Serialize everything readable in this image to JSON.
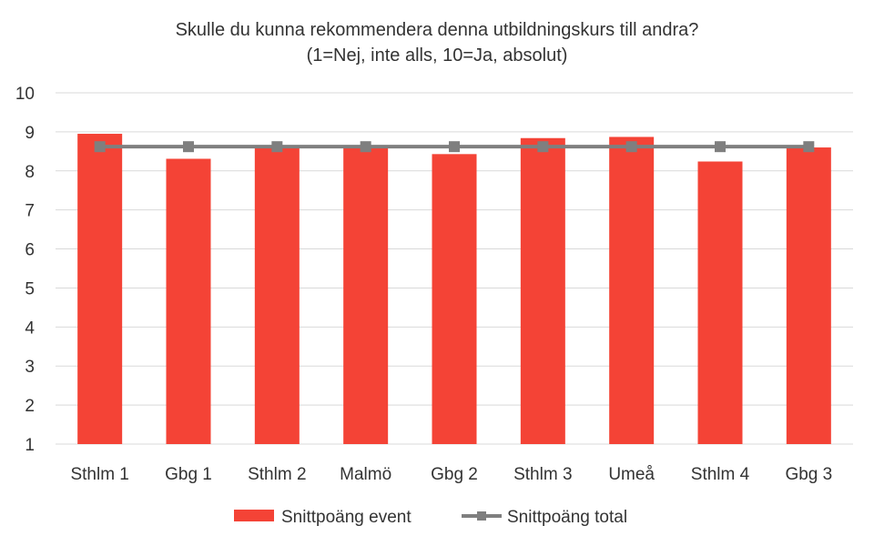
{
  "chart_data": {
    "type": "bar",
    "title": "Skulle du kunna rekommendera denna utbildningskurs till andra?",
    "subtitle": "(1=Nej, inte alls, 10=Ja,  absolut)",
    "categories": [
      "Sthlm 1",
      "Gbg 1",
      "Sthlm 2",
      "Malmö",
      "Gbg 2",
      "Sthlm 3",
      "Umeå",
      "Sthlm 4",
      "Gbg 3"
    ],
    "series": [
      {
        "name": "Snittpoäng event",
        "type": "bar",
        "color": "#f44336",
        "values": [
          8.95,
          8.31,
          8.61,
          8.6,
          8.43,
          8.84,
          8.87,
          8.24,
          8.6
        ]
      },
      {
        "name": "Snittpoäng total",
        "type": "line",
        "color": "#7f7f7f",
        "marker": "square",
        "values": [
          8.62,
          8.62,
          8.62,
          8.62,
          8.62,
          8.62,
          8.62,
          8.62,
          8.62
        ]
      }
    ],
    "ylim": [
      1,
      10
    ],
    "yticks": [
      1,
      2,
      3,
      4,
      5,
      6,
      7,
      8,
      9,
      10
    ],
    "grid": true,
    "legend_position": "bottom"
  }
}
